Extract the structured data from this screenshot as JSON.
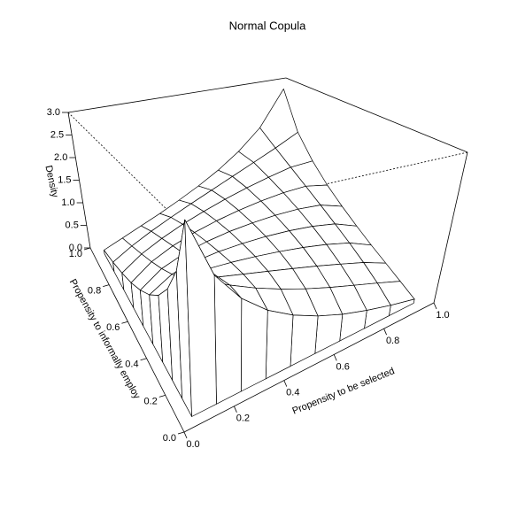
{
  "chart_data": {
    "type": "surface",
    "title": "Normal Copula",
    "xlabel": "Propensity to be selected",
    "ylabel": "Propensity to informally employ",
    "zlabel": "Density",
    "x": [
      0.05,
      0.15,
      0.25,
      0.35,
      0.45,
      0.55,
      0.65,
      0.75,
      0.85,
      0.95
    ],
    "y": [
      0.05,
      0.15,
      0.25,
      0.35,
      0.45,
      0.55,
      0.65,
      0.75,
      0.85,
      0.95
    ],
    "z": [
      [
        2.85,
        1.92,
        1.43,
        1.09,
        0.84,
        0.64,
        0.47,
        0.33,
        0.2,
        0.08
      ],
      [
        1.92,
        1.65,
        1.43,
        1.23,
        1.05,
        0.88,
        0.72,
        0.56,
        0.39,
        0.2
      ],
      [
        1.43,
        1.43,
        1.34,
        1.24,
        1.13,
        1.01,
        0.88,
        0.73,
        0.56,
        0.33
      ],
      [
        1.09,
        1.23,
        1.24,
        1.21,
        1.16,
        1.09,
        1.0,
        0.88,
        0.72,
        0.47
      ],
      [
        0.84,
        1.05,
        1.13,
        1.16,
        1.16,
        1.14,
        1.09,
        1.01,
        0.88,
        0.64
      ],
      [
        0.64,
        0.88,
        1.01,
        1.09,
        1.14,
        1.16,
        1.16,
        1.13,
        1.05,
        0.84
      ],
      [
        0.47,
        0.72,
        0.88,
        1.0,
        1.09,
        1.16,
        1.21,
        1.24,
        1.23,
        1.09
      ],
      [
        0.33,
        0.56,
        0.73,
        0.88,
        1.01,
        1.13,
        1.24,
        1.34,
        1.43,
        1.43
      ],
      [
        0.2,
        0.39,
        0.56,
        0.72,
        0.88,
        1.05,
        1.23,
        1.43,
        1.65,
        1.92
      ],
      [
        0.08,
        0.2,
        0.33,
        0.47,
        0.64,
        0.84,
        1.09,
        1.43,
        1.92,
        2.85
      ]
    ],
    "xlim": [
      0,
      1
    ],
    "ylim": [
      0,
      1
    ],
    "zlim": [
      0,
      3
    ],
    "xticks": [
      {
        "value": 0,
        "label": "0.0"
      },
      0.2,
      0.4,
      0.6,
      0.8,
      {
        "value": 1,
        "label": "1.0"
      }
    ],
    "yticks": [
      {
        "value": 0,
        "label": "0.0"
      },
      0.2,
      0.4,
      0.6,
      0.8,
      {
        "value": 1,
        "label": "1.0"
      }
    ],
    "zticks": [
      {
        "value": 0,
        "label": "0.0"
      },
      0.5,
      {
        "value": 1,
        "label": "1.0"
      },
      1.5,
      {
        "value": 2,
        "label": "2.0"
      },
      2.5,
      {
        "value": 3,
        "label": "3.0"
      }
    ],
    "color": "#ffffff",
    "line_color": "#000000"
  }
}
